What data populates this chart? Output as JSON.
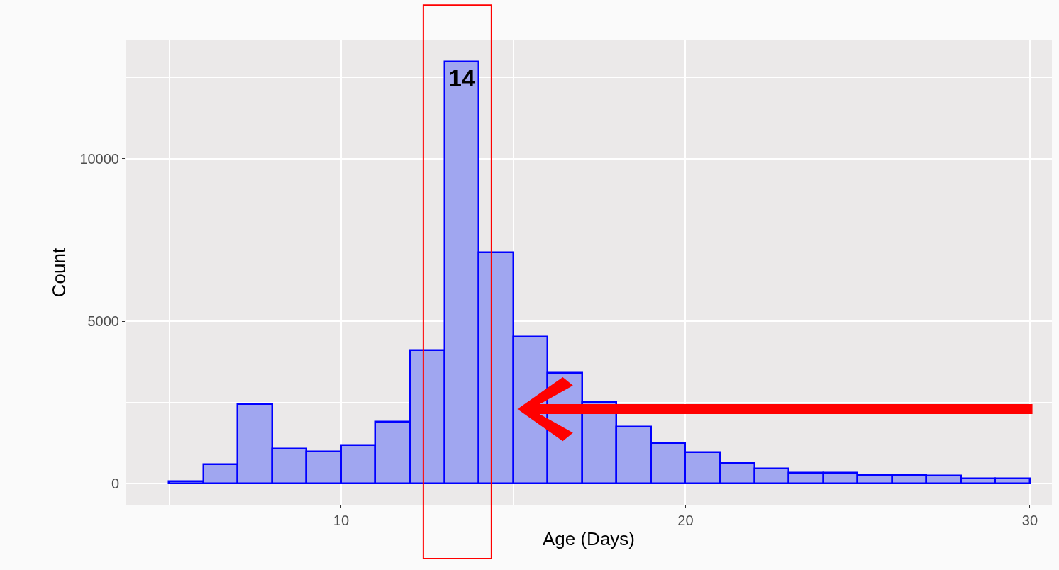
{
  "chart_data": {
    "type": "histogram",
    "xlabel": "Age (Days)",
    "ylabel": "Count",
    "bins": [
      5,
      6,
      7,
      8,
      9,
      10,
      11,
      12,
      13,
      14,
      15,
      16,
      17,
      18,
      19,
      20,
      21,
      22,
      23,
      24,
      25,
      26,
      27,
      28,
      29,
      30
    ],
    "values": [
      60,
      600,
      2450,
      1070,
      980,
      1180,
      1900,
      4100,
      12990,
      7120,
      4520,
      3410,
      2510,
      1750,
      1250,
      950,
      630,
      460,
      320,
      320,
      260,
      260,
      240,
      150,
      150
    ],
    "color": "#a0a6f0",
    "xlim": [
      3.74,
      30.64
    ],
    "xticks": [
      10,
      20,
      30
    ],
    "ylim": [
      -655,
      13646
    ],
    "yticks": [
      0,
      5000,
      10000
    ],
    "annotations": [
      {
        "text": "14",
        "x": 13.5,
        "y": 12990
      }
    ],
    "grid": true
  }
}
